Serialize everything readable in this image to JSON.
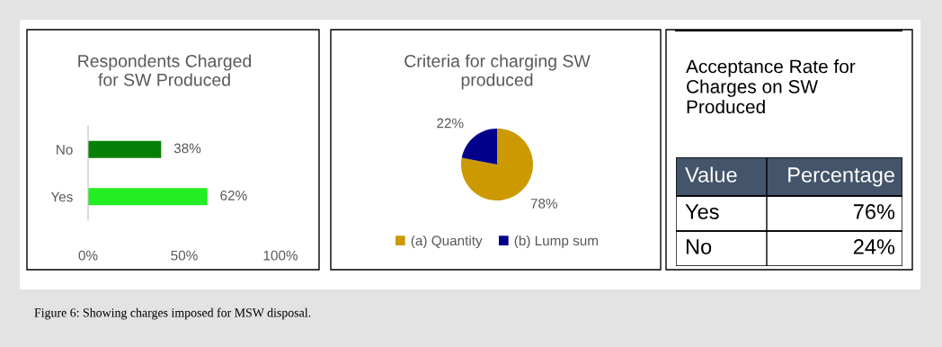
{
  "chart_data": [
    {
      "type": "bar",
      "orientation": "horizontal",
      "title": "Respondents Charged for SW Produced",
      "categories": [
        "No",
        "Yes"
      ],
      "values": [
        38,
        62
      ],
      "colors": [
        "#068006",
        "#22ee22"
      ],
      "value_labels": [
        "38%",
        "62%"
      ],
      "xlim": [
        0,
        100
      ],
      "xticks": [
        {
          "value": 0,
          "label": "0%"
        },
        {
          "value": 50,
          "label": "50%"
        },
        {
          "value": 100,
          "label": "100%"
        }
      ],
      "annotations": [
        "Figure 6: Showing charges imposed for MSW disposal."
      ]
    },
    {
      "type": "pie",
      "title": "Criteria for charging SW produced",
      "categories": [
        "(a) Quantity",
        "(b) Lump sum"
      ],
      "values": [
        78,
        22
      ],
      "colors": [
        "#cc9900",
        "#00008b"
      ],
      "value_labels": [
        "78%",
        "22%"
      ],
      "legend": "bottom"
    },
    {
      "type": "other",
      "title": "Acceptance Rate for Charges on SW Produced",
      "categories": [
        "Yes",
        "No"
      ],
      "value_labels": [
        "76%",
        "24%"
      ],
      "annotations": [
        "Value",
        "Percentage"
      ]
    }
  ]
}
